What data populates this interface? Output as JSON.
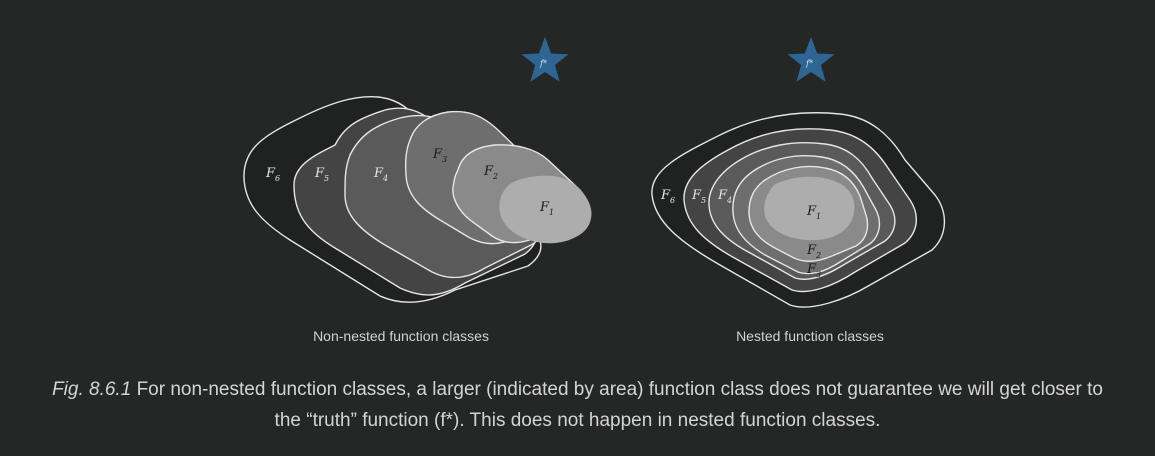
{
  "colors": {
    "background": "#252626",
    "star": "#2e6592",
    "outline": "#e6e6e6",
    "fill_outer": "#202121",
    "fill_5": "#444444",
    "fill_4": "#5a5a5a",
    "fill_3": "#6e6e6e",
    "fill_2": "#8a8a8a",
    "fill_1": "#adadad"
  },
  "left_panel": {
    "label": "Non-nested function classes",
    "star_label": "f*",
    "regions": [
      {
        "symbol": "F",
        "index": "6"
      },
      {
        "symbol": "F",
        "index": "5"
      },
      {
        "symbol": "F",
        "index": "4"
      },
      {
        "symbol": "F",
        "index": "3"
      },
      {
        "symbol": "F",
        "index": "2"
      },
      {
        "symbol": "F",
        "index": "1"
      }
    ]
  },
  "right_panel": {
    "label": "Nested function classes",
    "star_label": "f*",
    "regions": [
      {
        "symbol": "F",
        "index": "6"
      },
      {
        "symbol": "F",
        "index": "5"
      },
      {
        "symbol": "F",
        "index": "4"
      },
      {
        "symbol": "F",
        "index": "1"
      },
      {
        "symbol": "F",
        "index": "2"
      },
      {
        "symbol": "F",
        "index": "3"
      }
    ]
  },
  "caption": {
    "figure_number": "Fig. 8.6.1",
    "line1": "For non-nested function classes, a larger (indicated by area) function class does not guarantee we will get closer to",
    "line2": "the “truth” function (f*). This does not happen in nested function classes."
  }
}
